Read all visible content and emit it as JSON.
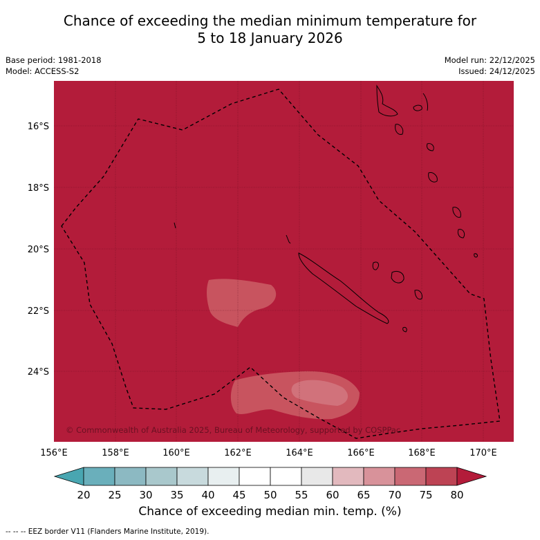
{
  "title": {
    "line1": "Chance of exceeding the median minimum temperature for",
    "line2": "5 to 18 January 2026"
  },
  "meta": {
    "base_period": "Base period: 1981-2018",
    "model": "Model: ACCESS-S2",
    "model_run": "Model run: 22/12/2025",
    "issued": "Issued: 24/12/2025"
  },
  "map": {
    "lat_labels": [
      "16°S",
      "18°S",
      "20°S",
      "22°S",
      "24°S"
    ],
    "lon_labels": [
      "156°E",
      "158°E",
      "160°E",
      "162°E",
      "164°E",
      "166°E",
      "168°E",
      "170°E"
    ],
    "copyright": "© Commonwealth of Australia 2025, Bureau of Meteorology, supported by COSPPac",
    "colors": {
      "background": "#b31c3a",
      "zone_70_75": "#c8545f",
      "zone_65_70": "#d1727b"
    }
  },
  "colorbar": {
    "ticks": [
      "20",
      "25",
      "30",
      "35",
      "40",
      "45",
      "50",
      "55",
      "60",
      "65",
      "70",
      "75",
      "80"
    ],
    "colors": [
      "#49a6b1",
      "#6aafbb",
      "#8cb9c2",
      "#a9c8cc",
      "#c8dadd",
      "#e8eff0",
      "#ffffff",
      "#ffffff",
      "#e8e8e8",
      "#e2b9be",
      "#d8929a",
      "#ca6874",
      "#bd4354",
      "#b31c3a"
    ],
    "label": "Chance of exceeding median min. temp. (%)"
  },
  "footer": "--  --  -- EEZ border V11 (Flanders Marine Institute, 2019)."
}
